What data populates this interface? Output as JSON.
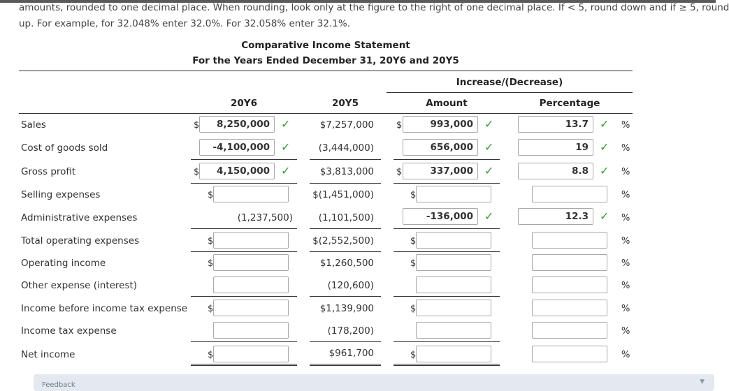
{
  "instructions": {
    "line1": "amounts, rounded to one decimal place. When rounding, look only at the figure to the right of one decimal place. If < 5, round down and if ≥ 5, round",
    "line2": "up. For example, for 32.048% enter 32.0%. For 32.058% enter 32.1%."
  },
  "statement": {
    "title": "Comparative Income Statement",
    "subtitle": "For the Years Ended December 31, 20Y6 and 20Y5"
  },
  "columns": {
    "group_header": "Increase/(Decrease)",
    "y6": "20Y6",
    "y5": "20Y5",
    "amount": "Amount",
    "percentage": "Percentage"
  },
  "symbols": {
    "dollar": "$",
    "percent": "%",
    "check": "✓"
  },
  "rows": [
    {
      "label": "Sales",
      "y6": "8,250,000",
      "y5": "$7,257,000",
      "amount": "993,000",
      "percentage": "13.7"
    },
    {
      "label": "Cost of goods sold",
      "y6": "-4,100,000",
      "y5": "(3,444,000)",
      "amount": "656,000",
      "percentage": "19"
    },
    {
      "label": "Gross profit",
      "y6": "4,150,000",
      "y5": "$3,813,000",
      "amount": "337,000",
      "percentage": "8.8"
    },
    {
      "label": "Selling expenses",
      "y6": "",
      "y5": "$(1,451,000)",
      "amount": "",
      "percentage": ""
    },
    {
      "label": "Administrative expenses",
      "y6": "(1,237,500)",
      "y5": "(1,101,500)",
      "amount": "-136,000",
      "percentage": "12.3"
    },
    {
      "label": "Total operating expenses",
      "y6": "",
      "y5": "$(2,552,500)",
      "amount": "",
      "percentage": ""
    },
    {
      "label": "Operating income",
      "y6": "",
      "y5": "$1,260,500",
      "amount": "",
      "percentage": ""
    },
    {
      "label": "Other expense (interest)",
      "y6": "",
      "y5": "(120,600)",
      "amount": "",
      "percentage": ""
    },
    {
      "label": "Income before income tax expense",
      "y6": "",
      "y5": "$1,139,900",
      "amount": "",
      "percentage": ""
    },
    {
      "label": "Income tax expense",
      "y6": "",
      "y5": "(178,200)",
      "amount": "",
      "percentage": ""
    },
    {
      "label": "Net income",
      "y6": "",
      "y5": "$961,700",
      "amount": "",
      "percentage": ""
    }
  ],
  "feedback": {
    "label": "Feedback"
  }
}
